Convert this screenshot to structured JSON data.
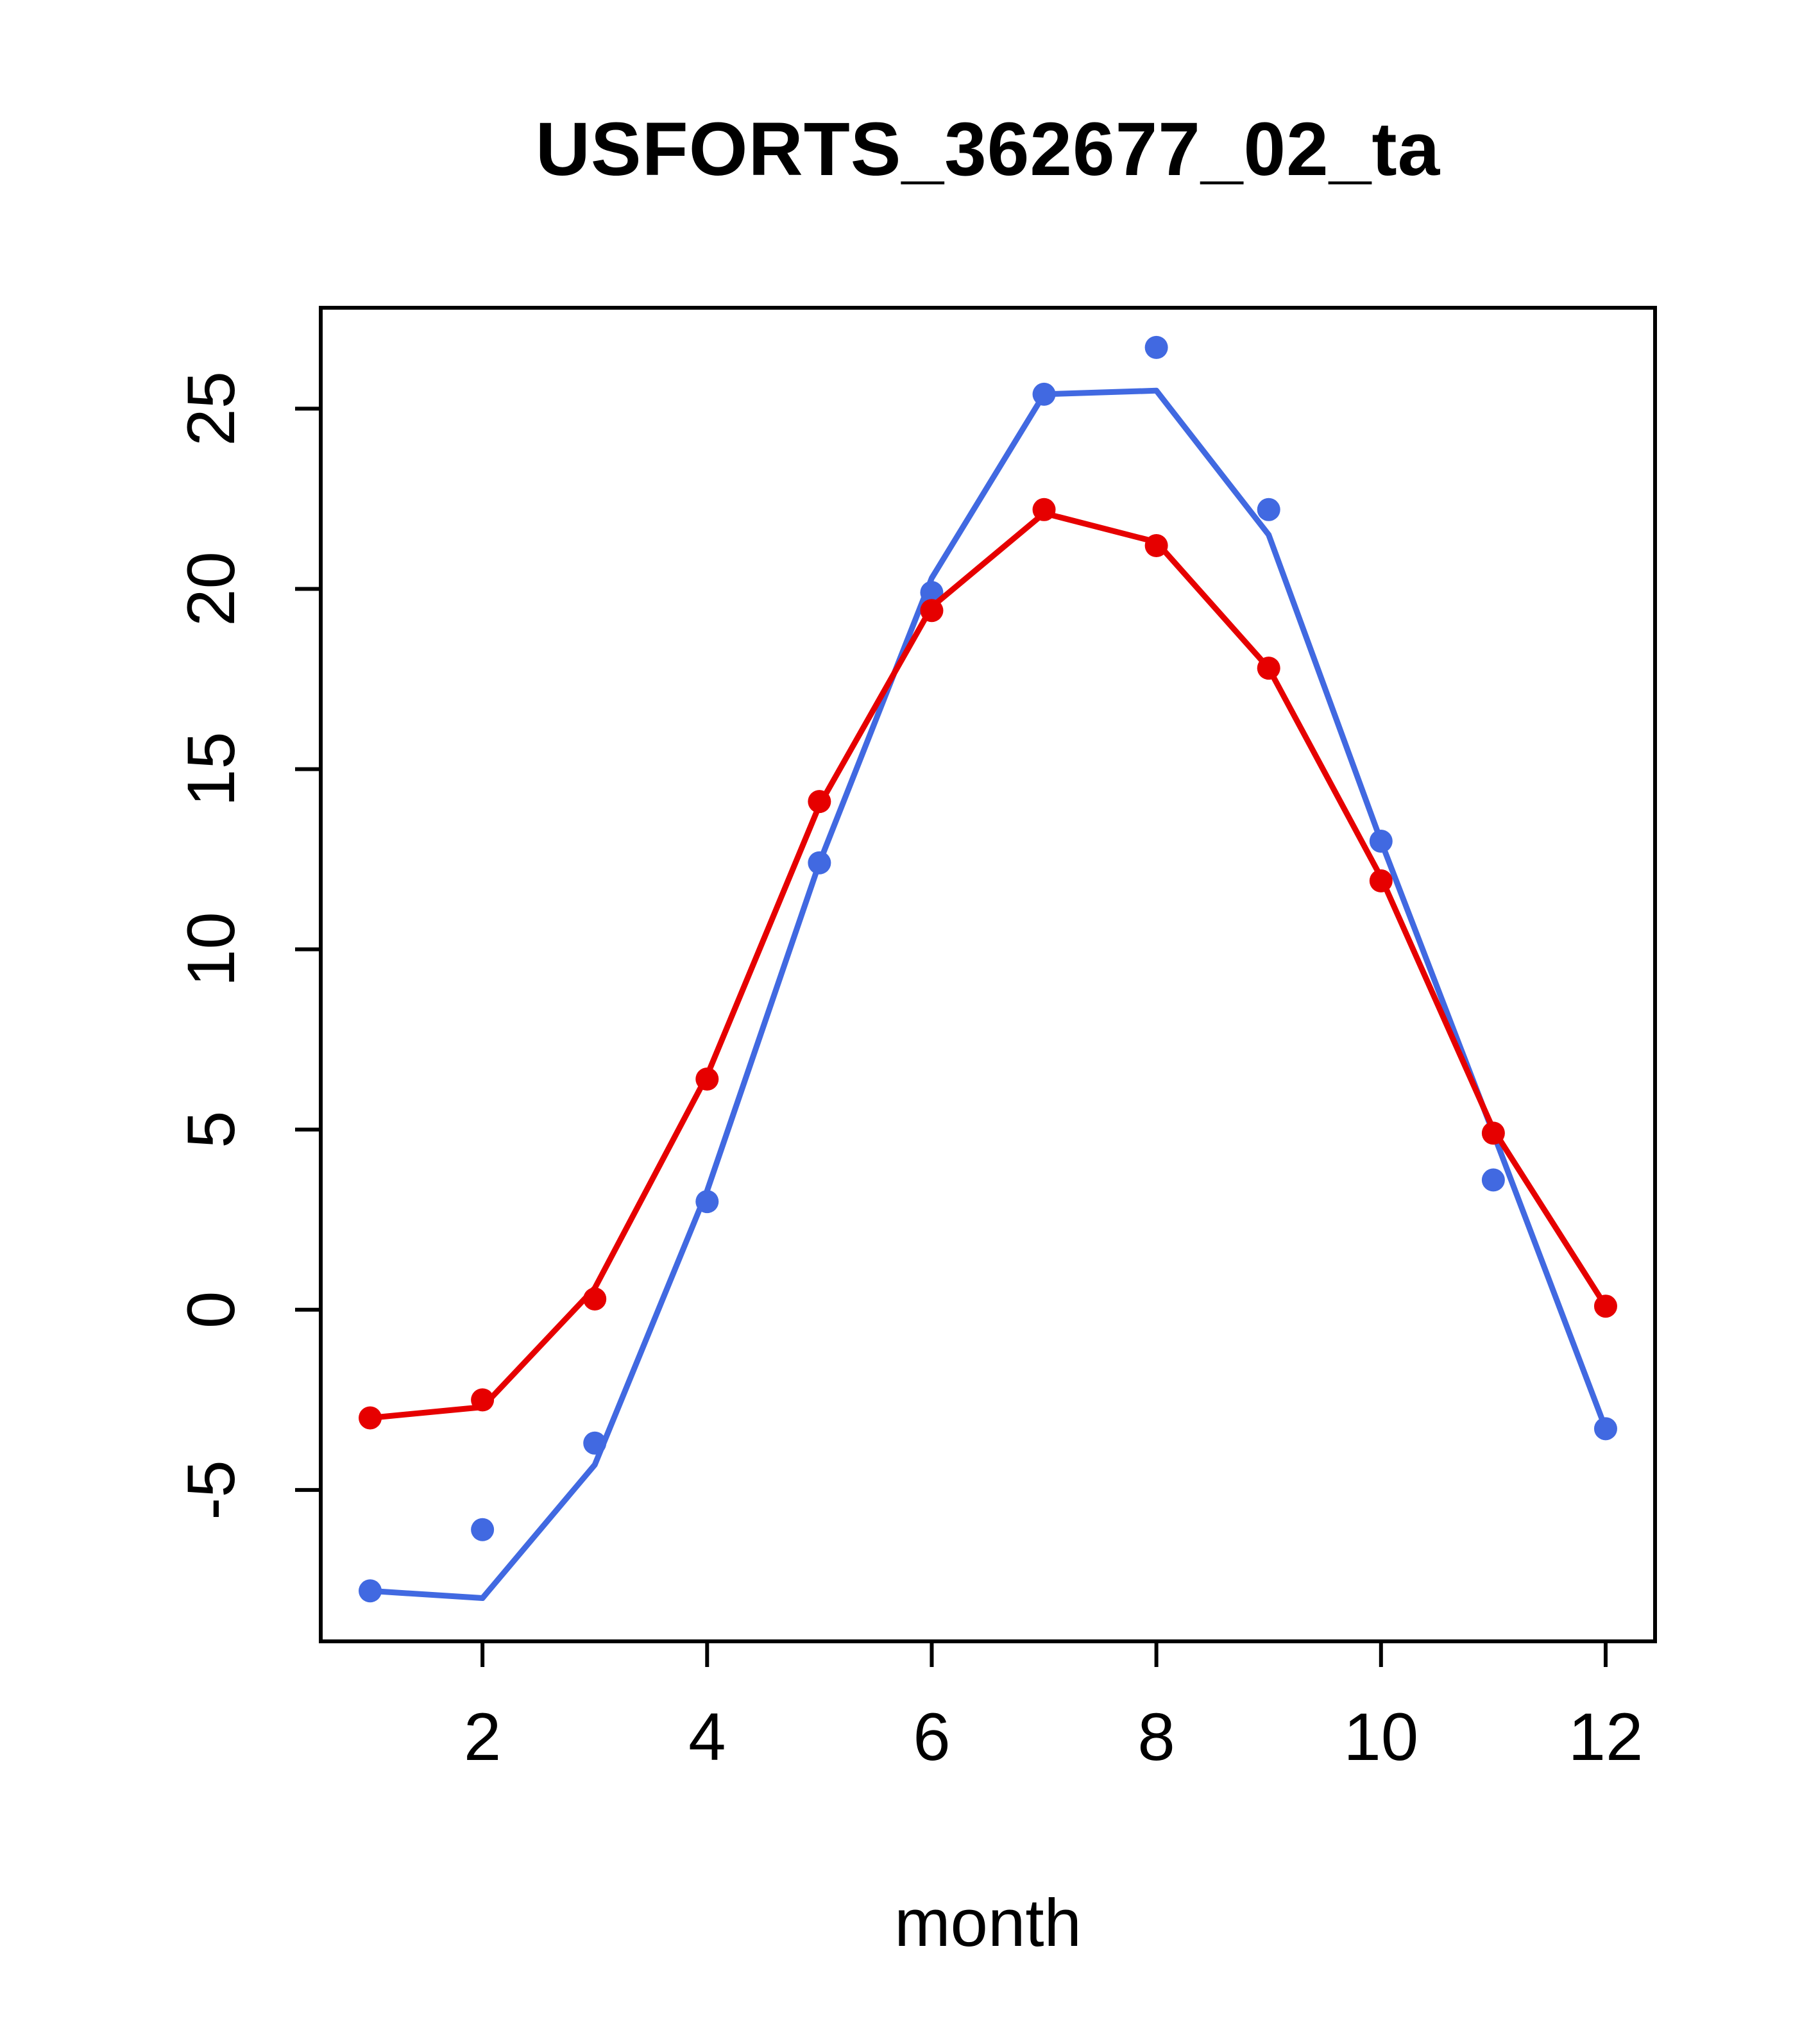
{
  "chart_data": {
    "type": "line",
    "title": "USFORTS_362677_02_ta",
    "xlabel": "month",
    "ylabel": "",
    "x": [
      1,
      2,
      3,
      4,
      5,
      6,
      7,
      8,
      9,
      10,
      11,
      12
    ],
    "xticks": [
      2,
      4,
      6,
      8,
      10,
      12
    ],
    "yticks": [
      -5,
      0,
      5,
      10,
      15,
      20,
      25
    ],
    "xlim": [
      0.56,
      12.44
    ],
    "ylim": [
      -9.2,
      27.8
    ],
    "grid": false,
    "legend": "none",
    "colors": {
      "blue_series": "#4169e1",
      "red_series": "#e60000",
      "axis": "#000000",
      "background": "#ffffff"
    },
    "series": [
      {
        "name": "blue-series",
        "color": "#4169e1",
        "marker": "circle",
        "points": [
          -7.8,
          -6.1,
          -3.7,
          3.0,
          12.4,
          19.9,
          25.4,
          26.7,
          22.2,
          13.0,
          3.6,
          -3.3
        ],
        "line": [
          -7.8,
          -8.0,
          -4.3,
          3.3,
          12.4,
          20.3,
          25.4,
          25.5,
          21.5,
          13.0,
          4.9,
          -3.3
        ]
      },
      {
        "name": "red-series",
        "color": "#e60000",
        "marker": "circle",
        "points": [
          -3.0,
          -2.5,
          0.3,
          6.4,
          14.1,
          19.4,
          22.2,
          21.2,
          17.8,
          11.9,
          4.9,
          0.1
        ],
        "line": [
          -3.0,
          -2.7,
          0.6,
          6.5,
          14.0,
          19.5,
          22.1,
          21.3,
          17.8,
          12.0,
          5.0,
          0.1
        ]
      }
    ]
  }
}
